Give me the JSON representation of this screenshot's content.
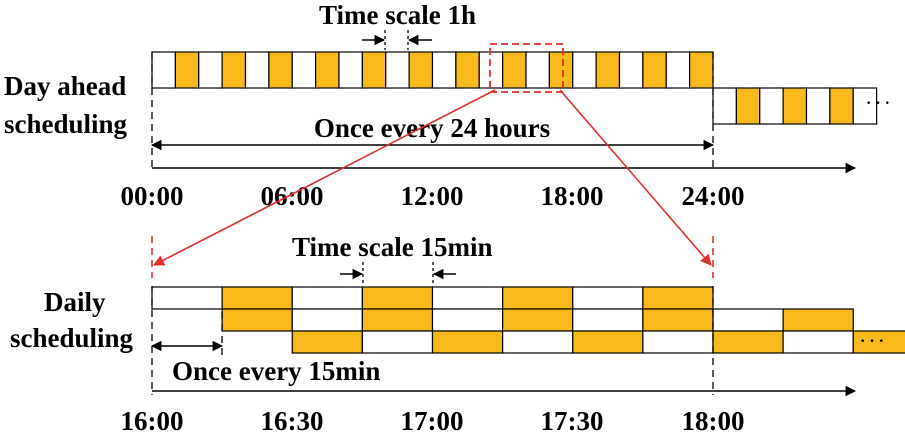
{
  "colors": {
    "slot_fill": "#F7B91C",
    "slot_stroke": "#000000",
    "zoom": "#E0302A",
    "axis": "#000000"
  },
  "top": {
    "label_line1": "Day ahead",
    "label_line2": "scheduling",
    "time_scale": "Time scale 1h",
    "interval": "Once every 24 hours",
    "ticks": [
      "00:00",
      "06:00",
      "12:00",
      "18:00",
      "24:00"
    ],
    "slot_pattern": [
      0,
      1,
      0,
      1,
      0,
      1,
      0,
      1,
      0,
      1,
      0,
      1,
      0,
      1,
      0,
      1,
      0,
      1,
      0,
      1,
      0,
      1,
      0,
      1
    ],
    "next_pattern": [
      0,
      1,
      0,
      1,
      0,
      1,
      0
    ],
    "ellipsis": "· · ·"
  },
  "bottom": {
    "label_line1": "Daily",
    "label_line2": "scheduling",
    "time_scale": "Time scale 15min",
    "interval": "Once every 15min",
    "ticks": [
      "16:00",
      "16:30",
      "17:00",
      "17:30",
      "18:00"
    ],
    "rows": [
      [
        0,
        1,
        0,
        1,
        0,
        1,
        0,
        1
      ],
      [
        1,
        0,
        1,
        0,
        1,
        0,
        1,
        0,
        1
      ],
      [
        1,
        0,
        1,
        0,
        1,
        0,
        1,
        0,
        1
      ]
    ],
    "ellipsis": "· · ·"
  }
}
